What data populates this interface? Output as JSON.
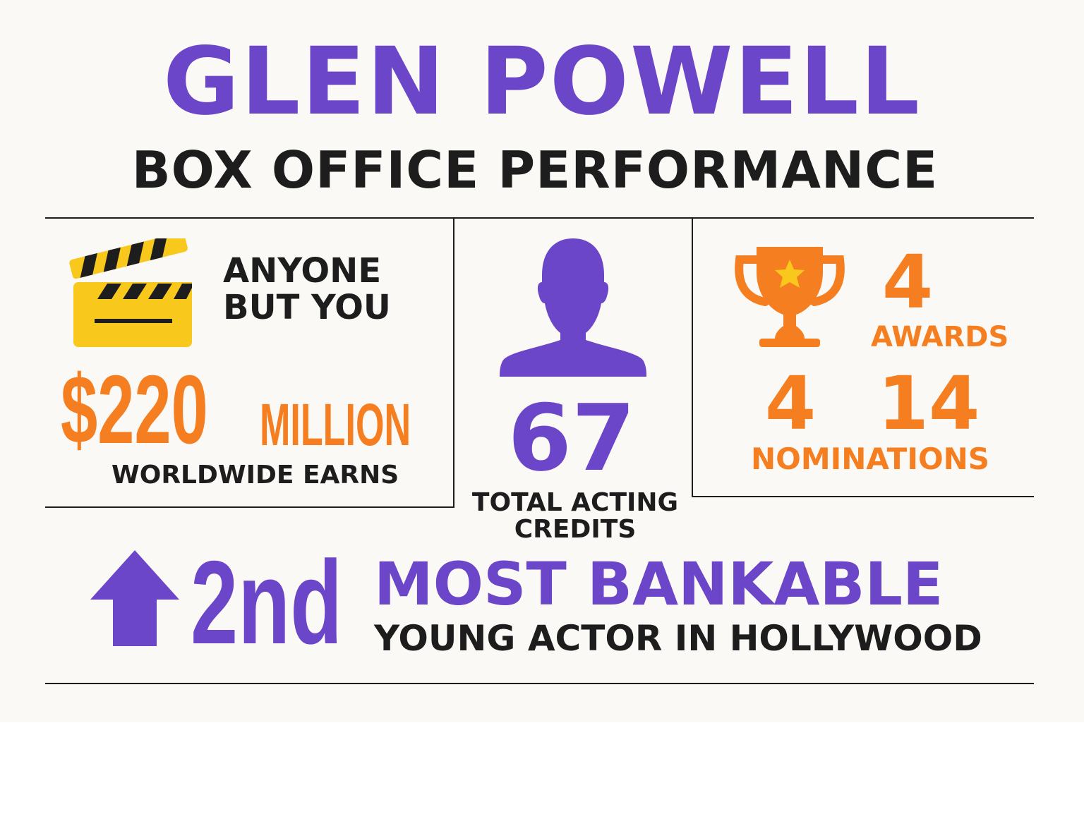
{
  "header": {
    "name": "GLEN POWELL",
    "subtitle": "BOX OFFICE PERFORMANCE"
  },
  "movie_card": {
    "icon": "clapperboard-icon",
    "film_line1": "ANYONE",
    "film_line2": "BUT YOU",
    "amount": "$220",
    "unit": "MILLION",
    "caption": "WORLDWIDE EARNS"
  },
  "credits_card": {
    "icon": "person-silhouette-icon",
    "value": "67",
    "caption_line1": "TOTAL ACTING",
    "caption_line2": "CREDITS"
  },
  "awards_card": {
    "icon": "trophy-icon",
    "awards_value": "4",
    "awards_label": "AWARDS",
    "nominations_value_a": "4",
    "nominations_value_b": "14",
    "nominations_label": "NOMINATIONS"
  },
  "ranking": {
    "icon": "up-arrow-icon",
    "rank": "2nd",
    "headline": "MOST BANKABLE",
    "subline": "YOUNG ACTOR IN HOLLYWOOD"
  },
  "colors": {
    "purple": "#6b46c8",
    "orange": "#f47e20",
    "yellow": "#f9c81c",
    "dark": "#1d1d1d",
    "background": "#fbf9f6"
  }
}
